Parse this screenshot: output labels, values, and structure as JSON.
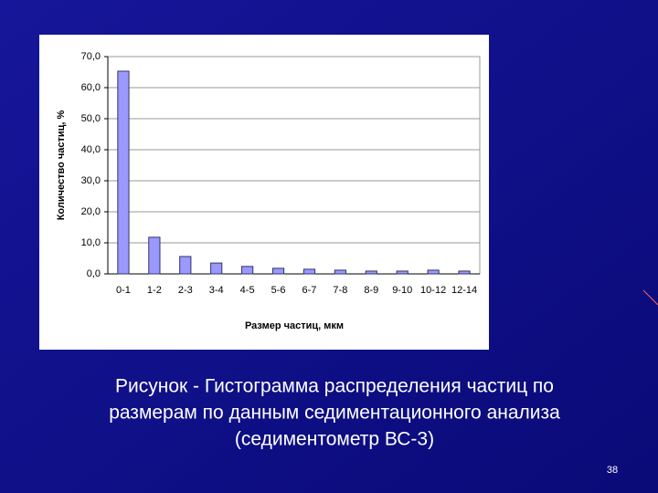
{
  "chart_data": {
    "type": "bar",
    "x_label": "Размер частиц, мкм",
    "y_label": "Количество частиц, %",
    "categories": [
      "0-1",
      "1-2",
      "2-3",
      "3-4",
      "4-5",
      "5-6",
      "6-7",
      "7-8",
      "8-9",
      "9-10",
      "10-12",
      "12-14"
    ],
    "values": [
      65.3,
      11.8,
      5.6,
      3.5,
      2.4,
      1.8,
      1.5,
      1.2,
      0.9,
      0.9,
      1.2,
      0.9
    ],
    "color": "#9999ff",
    "ylim": [
      0,
      70
    ],
    "yticks": [
      {
        "value": 0,
        "label": "0,0"
      },
      {
        "value": 10,
        "label": "10,0"
      },
      {
        "value": 20,
        "label": "20,0"
      },
      {
        "value": 30,
        "label": "30,0"
      },
      {
        "value": 40,
        "label": "40,0"
      },
      {
        "value": 50,
        "label": "50,0"
      },
      {
        "value": 60,
        "label": "60,0"
      },
      {
        "value": 70,
        "label": "70,0"
      }
    ],
    "grid": true
  },
  "caption": [
    "Рисунок - Гистограмма распределения частиц по",
    "размерам по данным седиментационного анализа",
    "(седиментометр ВС-3)"
  ],
  "page_number": "38"
}
